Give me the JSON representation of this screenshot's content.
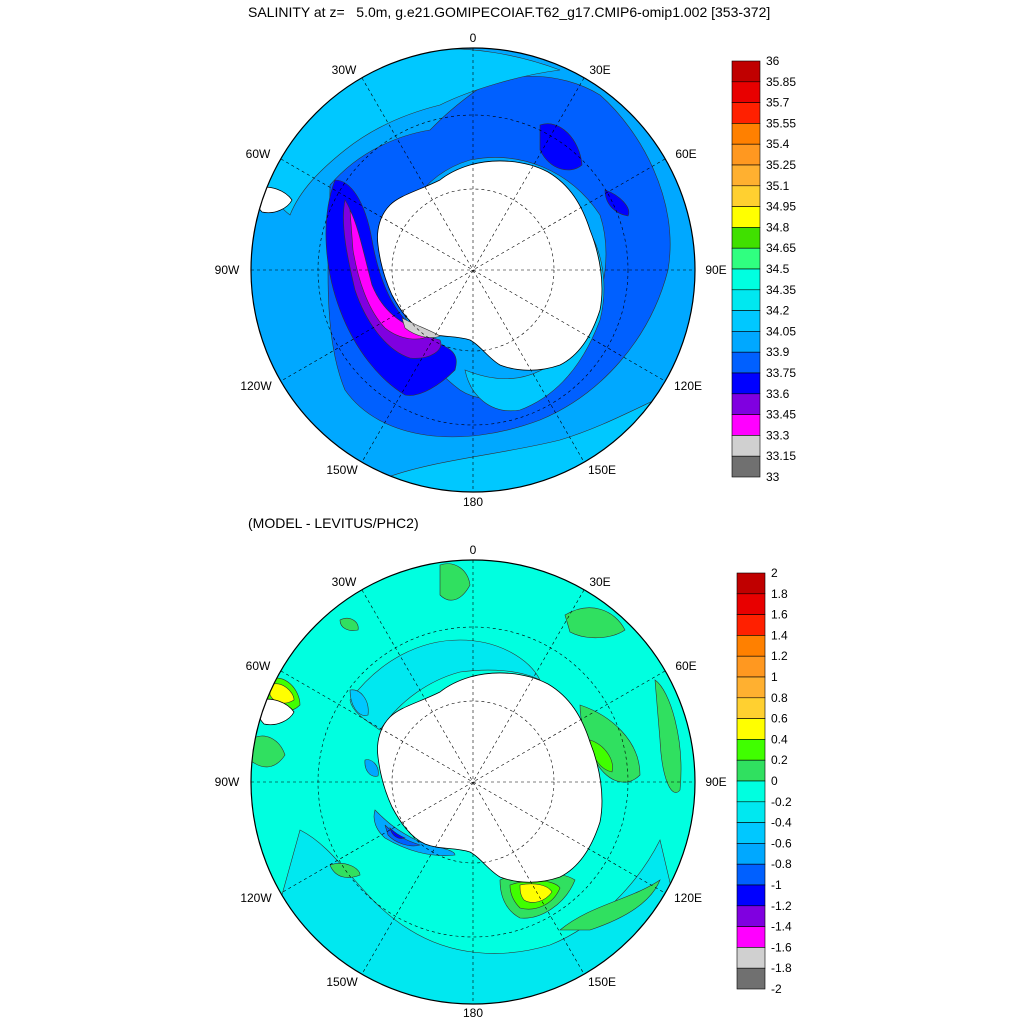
{
  "top": {
    "title": "SALINITY at z=   5.0m, g.e21.GOMIPECOIAF.T62_g17.CMIP6-omip1.002 [353-372]",
    "lon_labels": {
      "n": "0",
      "ne": "30E",
      "e1": "60E",
      "e": "90E",
      "se1": "120E",
      "se": "150E",
      "s": "180",
      "sw": "150W",
      "sw1": "120W",
      "w": "90W",
      "nw1": "60W",
      "nw": "30W"
    },
    "colorbar": {
      "labels": [
        "36",
        "35.85",
        "35.7",
        "35.55",
        "35.4",
        "35.25",
        "35.1",
        "34.95",
        "34.8",
        "34.65",
        "34.5",
        "34.35",
        "34.2",
        "34.05",
        "33.9",
        "33.75",
        "33.6",
        "33.45",
        "33.3",
        "33.15",
        "33"
      ],
      "colors": [
        "#c00000",
        "#e80000",
        "#ff2000",
        "#ff8000",
        "#ff9820",
        "#ffb030",
        "#ffd030",
        "#ffff00",
        "#40e000",
        "#30ff80",
        "#00ffe0",
        "#00e8f0",
        "#00c8ff",
        "#00a8ff",
        "#0060ff",
        "#0000ff",
        "#8000e0",
        "#ff00ff",
        "#d0d0d0",
        "#707070"
      ]
    }
  },
  "bottom": {
    "title": "(MODEL - LEVITUS/PHC2)",
    "lon_labels": {
      "n": "0",
      "ne": "30E",
      "e1": "60E",
      "e": "90E",
      "se1": "120E",
      "se": "150E",
      "s": "180",
      "sw": "150W",
      "sw1": "120W",
      "w": "90W",
      "nw1": "60W",
      "nw": "30W"
    },
    "colorbar": {
      "labels": [
        "2",
        "1.8",
        "1.6",
        "1.4",
        "1.2",
        "1",
        "0.8",
        "0.6",
        "0.4",
        "0.2",
        "0",
        "-0.2",
        "-0.4",
        "-0.6",
        "-0.8",
        "-1",
        "-1.2",
        "-1.4",
        "-1.6",
        "-1.8",
        "-2"
      ],
      "colors": [
        "#c00000",
        "#e80000",
        "#ff2000",
        "#ff8000",
        "#ff9820",
        "#ffb030",
        "#ffd030",
        "#ffff00",
        "#40ff00",
        "#30e060",
        "#00ffe0",
        "#00e8f0",
        "#00c8ff",
        "#00a8ff",
        "#0060ff",
        "#0000ff",
        "#8000e0",
        "#ff00ff",
        "#d0d0d0",
        "#707070"
      ]
    }
  }
}
